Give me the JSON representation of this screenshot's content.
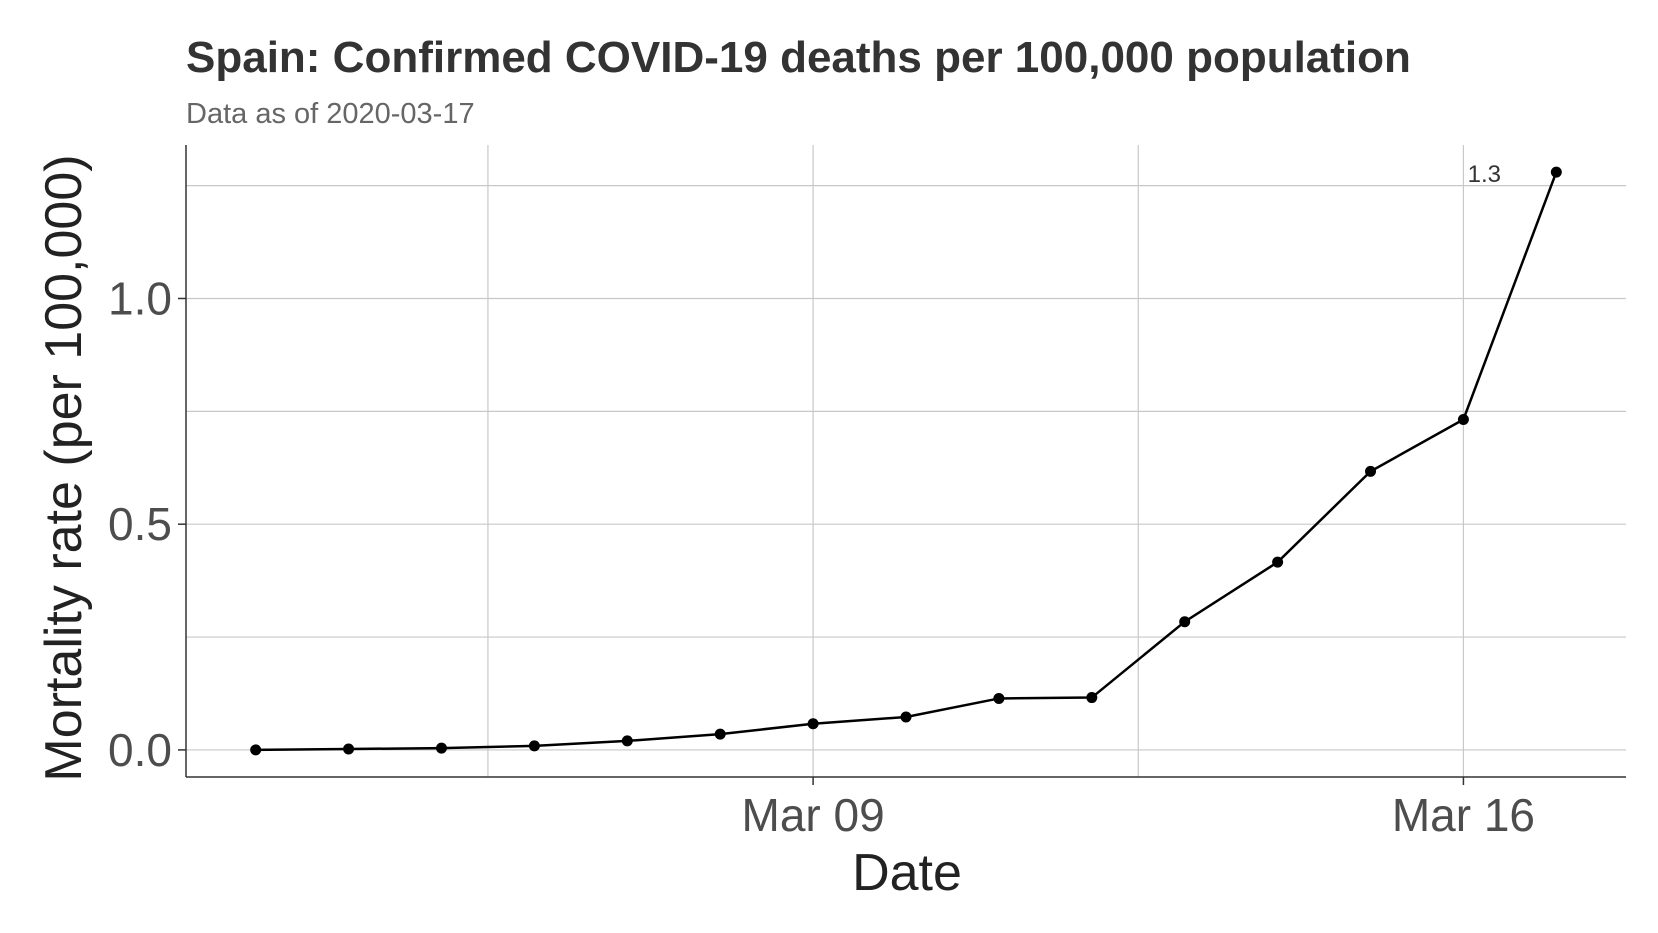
{
  "chart_data": {
    "type": "line",
    "title": "Spain: Confirmed COVID-19 deaths per 100,000 population",
    "subtitle": "Data as of 2020-03-17",
    "xlabel": "Date",
    "ylabel": "Mortality rate (per 100,000)",
    "x": [
      "2020-03-03",
      "2020-03-04",
      "2020-03-05",
      "2020-03-06",
      "2020-03-07",
      "2020-03-08",
      "2020-03-09",
      "2020-03-10",
      "2020-03-11",
      "2020-03-12",
      "2020-03-13",
      "2020-03-14",
      "2020-03-15",
      "2020-03-16",
      "2020-03-17"
    ],
    "x_ticks": [
      {
        "date": "2020-03-09",
        "label": "Mar 09"
      },
      {
        "date": "2020-03-16",
        "label": "Mar 16"
      }
    ],
    "x_minor_grid": [
      "2020-03-05T12:00",
      "2020-03-12T12:00"
    ],
    "xlim": [
      "2020-03-02T06:00",
      "2020-03-17T18:00"
    ],
    "y_ticks": [
      {
        "value": 0.0,
        "label": "0.0"
      },
      {
        "value": 0.5,
        "label": "0.5"
      },
      {
        "value": 1.0,
        "label": "1.0"
      }
    ],
    "y_minor_grid": [
      0.25,
      0.75,
      1.25
    ],
    "ylim": [
      -0.06,
      1.34
    ],
    "series": [
      {
        "values": [
          0.0,
          0.002,
          0.004,
          0.009,
          0.02,
          0.035,
          0.058,
          0.073,
          0.114,
          0.116,
          0.284,
          0.416,
          0.617,
          0.732,
          1.28
        ]
      }
    ],
    "annotations": [
      {
        "date": "2020-03-17",
        "value": 1.28,
        "label": "1.3"
      }
    ],
    "grid": true,
    "legend": "none",
    "line_color": "#000000"
  }
}
